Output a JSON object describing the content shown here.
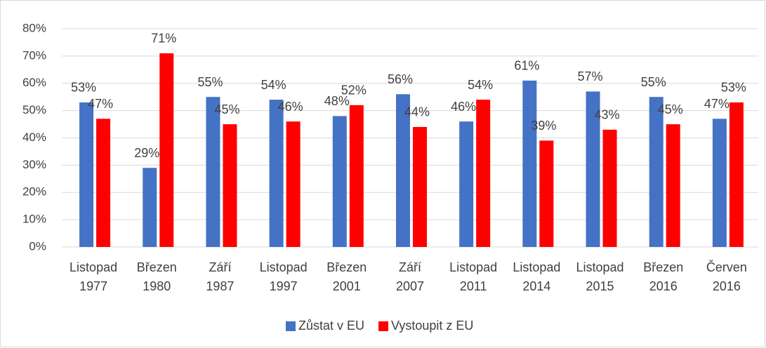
{
  "chart_data": {
    "type": "bar",
    "categories": [
      [
        "Listopad",
        "1977"
      ],
      [
        "Březen",
        "1980"
      ],
      [
        "Září",
        "1987"
      ],
      [
        "Listopad",
        "1997"
      ],
      [
        "Březen",
        "2001"
      ],
      [
        "Září",
        "2007"
      ],
      [
        "Listopad",
        "2011"
      ],
      [
        "Listopad",
        "2014"
      ],
      [
        "Listopad",
        "2015"
      ],
      [
        "Březen",
        "2016"
      ],
      [
        "Červen",
        "2016"
      ]
    ],
    "series": [
      {
        "name": "Zůstat v EU",
        "color": "#4472c4",
        "values": [
          53,
          29,
          55,
          54,
          48,
          56,
          46,
          61,
          57,
          55,
          47
        ],
        "value_labels": [
          "53%",
          "29%",
          "55%",
          "54%",
          "48%",
          "56%",
          "46%",
          "61%",
          "57%",
          "55%",
          "47%"
        ]
      },
      {
        "name": "Vystoupit z EU",
        "color": "#ff0000",
        "values": [
          47,
          71,
          45,
          46,
          52,
          44,
          54,
          39,
          43,
          45,
          53
        ],
        "value_labels": [
          "47%",
          "71%",
          "45%",
          "46%",
          "52%",
          "44%",
          "54%",
          "39%",
          "43%",
          "45%",
          "53%"
        ]
      }
    ],
    "ylim": [
      0,
      80
    ],
    "yticks": [
      {
        "value": 0,
        "label": "0%"
      },
      {
        "value": 10,
        "label": "10%"
      },
      {
        "value": 20,
        "label": "20%"
      },
      {
        "value": 30,
        "label": "30%"
      },
      {
        "value": 40,
        "label": "40%"
      },
      {
        "value": 50,
        "label": "50%"
      },
      {
        "value": 60,
        "label": "60%"
      },
      {
        "value": 70,
        "label": "70%"
      },
      {
        "value": 80,
        "label": "80%"
      }
    ],
    "grid": true,
    "legend": "bottom"
  }
}
